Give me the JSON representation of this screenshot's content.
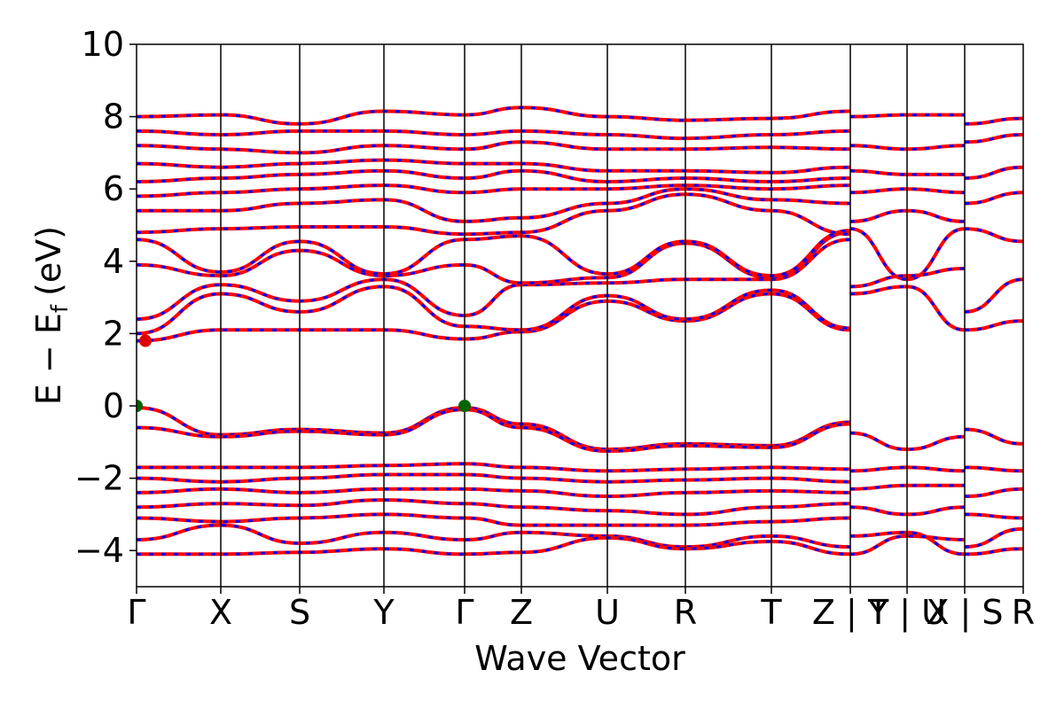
{
  "chart_data": {
    "type": "line",
    "title": "",
    "xlabel": "Wave Vector",
    "ylabel": "E − E",
    "ylabel_sub": "f",
    "ylabel_unit": "(eV)",
    "ylim": [
      -5,
      10
    ],
    "yticks": [
      -4,
      -2,
      0,
      2,
      4,
      6,
      8,
      10
    ],
    "ytick_labels": [
      "−4",
      "−2",
      "0",
      "2",
      "4",
      "6",
      "8",
      "10"
    ],
    "kpoints": [
      {
        "label": "Γ",
        "x": 0.0
      },
      {
        "label": "X",
        "x": 0.095
      },
      {
        "label": "S",
        "x": 0.184
      },
      {
        "label": "Y",
        "x": 0.279
      },
      {
        "label": "Γ",
        "x": 0.37
      },
      {
        "label": "Z",
        "x": 0.434
      },
      {
        "label": "U",
        "x": 0.531
      },
      {
        "label": "R",
        "x": 0.619
      },
      {
        "label": "T",
        "x": 0.716
      },
      {
        "label": "Z | Y",
        "x": 0.805
      },
      {
        "label": "T | U",
        "x": 0.869
      },
      {
        "label": "X | S",
        "x": 0.934
      },
      {
        "label": "R",
        "x": 1.0
      }
    ],
    "xlim": [
      0,
      1
    ],
    "grid": false,
    "colors": {
      "red": "#ff0000",
      "blue": "#0000ff",
      "marker": "#006400",
      "marker_red": "#dd0000"
    },
    "markers": [
      {
        "name": "vbm-marker-1",
        "x": 0.0,
        "y": 0.0,
        "color": "green"
      },
      {
        "name": "vbm-marker-2",
        "x": 0.37,
        "y": 0.0,
        "color": "green"
      },
      {
        "name": "cbm-marker",
        "x": 0.01,
        "y": 1.8,
        "color": "red"
      }
    ],
    "series": [
      {
        "nodes": [
          0.0,
          0.095,
          0.184,
          0.279,
          0.37,
          0.434,
          0.531,
          0.619,
          0.716,
          0.805
        ],
        "values": [
          -0.05,
          -0.8,
          -0.65,
          -0.75,
          -0.05,
          -0.5,
          -1.2,
          -1.05,
          -1.1,
          -0.45
        ]
      },
      {
        "nodes": [
          0.0,
          0.095,
          0.184,
          0.279,
          0.37,
          0.434,
          0.531,
          0.619,
          0.716,
          0.805
        ],
        "values": [
          -0.6,
          -0.85,
          -0.7,
          -0.8,
          -0.1,
          -0.6,
          -1.25,
          -1.1,
          -1.15,
          -0.5
        ]
      },
      {
        "nodes": [
          0.805,
          0.869,
          0.934
        ],
        "values": [
          -0.75,
          -1.2,
          -0.85
        ]
      },
      {
        "nodes": [
          0.934,
          1.0
        ],
        "values": [
          -0.65,
          -1.05
        ]
      },
      {
        "nodes": [
          0.0,
          0.095,
          0.184,
          0.279,
          0.37,
          0.434,
          0.531,
          0.619,
          0.716,
          0.805
        ],
        "values": [
          1.8,
          2.1,
          2.1,
          2.1,
          1.85,
          2.05,
          2.9,
          2.35,
          3.1,
          2.1
        ]
      },
      {
        "nodes": [
          0.0,
          0.095,
          0.184,
          0.279,
          0.37,
          0.434,
          0.531,
          0.619,
          0.716,
          0.805
        ],
        "values": [
          2.0,
          3.1,
          2.6,
          3.3,
          2.2,
          2.1,
          3.05,
          2.4,
          3.2,
          2.15
        ]
      },
      {
        "nodes": [
          0.0,
          0.095,
          0.184,
          0.279,
          0.37,
          0.434,
          0.531,
          0.619,
          0.716,
          0.805
        ],
        "values": [
          2.4,
          3.35,
          2.9,
          3.5,
          2.5,
          3.35,
          3.4,
          3.5,
          3.5,
          4.6
        ]
      },
      {
        "nodes": [
          0.0,
          0.095,
          0.184,
          0.279,
          0.37,
          0.434,
          0.531,
          0.619,
          0.716,
          0.805
        ],
        "values": [
          3.9,
          3.6,
          4.3,
          3.6,
          3.9,
          3.4,
          3.55,
          4.5,
          3.55,
          4.8
        ]
      },
      {
        "nodes": [
          0.0,
          0.095,
          0.184,
          0.279,
          0.37,
          0.434,
          0.531,
          0.619,
          0.716,
          0.805
        ],
        "values": [
          4.6,
          3.7,
          4.55,
          3.65,
          4.6,
          4.7,
          3.65,
          4.55,
          3.6,
          4.85
        ]
      },
      {
        "nodes": [
          0.805,
          0.869,
          0.934
        ],
        "values": [
          4.9,
          3.5,
          4.9
        ]
      },
      {
        "nodes": [
          0.805,
          0.869,
          0.934
        ],
        "values": [
          3.3,
          3.6,
          3.8
        ]
      },
      {
        "nodes": [
          0.805,
          0.869,
          0.934
        ],
        "values": [
          3.1,
          3.3,
          2.1
        ]
      },
      {
        "nodes": [
          0.934,
          1.0
        ],
        "values": [
          2.1,
          2.35
        ]
      },
      {
        "nodes": [
          0.934,
          1.0
        ],
        "values": [
          2.6,
          3.5
        ]
      },
      {
        "nodes": [
          0.934,
          1.0
        ],
        "values": [
          4.9,
          4.55
        ]
      },
      {
        "nodes": [
          0.0,
          0.095,
          0.184,
          0.279,
          0.37,
          0.434,
          0.531,
          0.619,
          0.716,
          0.805
        ],
        "values": [
          4.8,
          4.9,
          4.95,
          4.95,
          4.75,
          4.8,
          5.4,
          5.85,
          5.4,
          4.75
        ]
      },
      {
        "nodes": [
          0.0,
          0.095,
          0.184,
          0.279,
          0.37,
          0.434,
          0.531,
          0.619,
          0.716,
          0.805
        ],
        "values": [
          5.4,
          5.4,
          5.6,
          5.7,
          5.1,
          5.2,
          5.6,
          6.0,
          5.7,
          5.6
        ]
      },
      {
        "nodes": [
          0.0,
          0.095,
          0.184,
          0.279,
          0.37,
          0.434,
          0.531,
          0.619,
          0.716,
          0.805
        ],
        "values": [
          5.8,
          5.9,
          6.0,
          6.1,
          5.9,
          6.0,
          6.0,
          6.1,
          6.0,
          6.1
        ]
      },
      {
        "nodes": [
          0.0,
          0.095,
          0.184,
          0.279,
          0.37,
          0.434,
          0.531,
          0.619,
          0.716,
          0.805
        ],
        "values": [
          6.2,
          6.3,
          6.4,
          6.5,
          6.3,
          6.5,
          6.2,
          6.3,
          6.2,
          6.3
        ]
      },
      {
        "nodes": [
          0.0,
          0.095,
          0.184,
          0.279,
          0.37,
          0.434,
          0.531,
          0.619,
          0.716,
          0.805
        ],
        "values": [
          6.7,
          6.6,
          6.7,
          6.8,
          6.7,
          6.7,
          6.5,
          6.5,
          6.45,
          6.6
        ]
      },
      {
        "nodes": [
          0.0,
          0.095,
          0.184,
          0.279,
          0.37,
          0.434,
          0.531,
          0.619,
          0.716,
          0.805
        ],
        "values": [
          7.2,
          7.1,
          7.0,
          7.2,
          7.1,
          7.3,
          7.1,
          7.1,
          7.15,
          7.1
        ]
      },
      {
        "nodes": [
          0.0,
          0.095,
          0.184,
          0.279,
          0.37,
          0.434,
          0.531,
          0.619,
          0.716,
          0.805
        ],
        "values": [
          7.6,
          7.5,
          7.6,
          7.6,
          7.5,
          7.6,
          7.5,
          7.4,
          7.5,
          7.6
        ]
      },
      {
        "nodes": [
          0.0,
          0.095,
          0.184,
          0.279,
          0.37,
          0.434,
          0.531,
          0.619,
          0.716,
          0.805
        ],
        "values": [
          8.0,
          8.05,
          7.8,
          8.15,
          8.05,
          8.25,
          8.0,
          7.9,
          7.95,
          8.15
        ]
      },
      {
        "nodes": [
          0.805,
          0.869,
          0.934
        ],
        "values": [
          5.1,
          5.4,
          5.1
        ]
      },
      {
        "nodes": [
          0.805,
          0.869,
          0.934
        ],
        "values": [
          5.9,
          6.0,
          5.9
        ]
      },
      {
        "nodes": [
          0.805,
          0.869,
          0.934
        ],
        "values": [
          6.5,
          6.4,
          6.4
        ]
      },
      {
        "nodes": [
          0.805,
          0.869,
          0.934
        ],
        "values": [
          7.2,
          7.1,
          7.2
        ]
      },
      {
        "nodes": [
          0.805,
          0.869,
          0.934
        ],
        "values": [
          8.0,
          8.05,
          8.05
        ]
      },
      {
        "nodes": [
          0.934,
          1.0
        ],
        "values": [
          5.6,
          5.9
        ]
      },
      {
        "nodes": [
          0.934,
          1.0
        ],
        "values": [
          6.3,
          6.6
        ]
      },
      {
        "nodes": [
          0.934,
          1.0
        ],
        "values": [
          7.3,
          7.5
        ]
      },
      {
        "nodes": [
          0.934,
          1.0
        ],
        "values": [
          7.8,
          7.95
        ]
      },
      {
        "nodes": [
          0.0,
          0.095,
          0.184,
          0.279,
          0.37,
          0.434,
          0.531,
          0.619,
          0.716,
          0.805
        ],
        "values": [
          -1.7,
          -1.7,
          -1.7,
          -1.65,
          -1.6,
          -1.7,
          -1.8,
          -1.75,
          -1.7,
          -1.75
        ]
      },
      {
        "nodes": [
          0.0,
          0.095,
          0.184,
          0.279,
          0.37,
          0.434,
          0.531,
          0.619,
          0.716,
          0.805
        ],
        "values": [
          -2.0,
          -2.1,
          -2.0,
          -1.9,
          -1.9,
          -2.0,
          -2.1,
          -2.05,
          -2.0,
          -2.1
        ]
      },
      {
        "nodes": [
          0.0,
          0.095,
          0.184,
          0.279,
          0.37,
          0.434,
          0.531,
          0.619,
          0.716,
          0.805
        ],
        "values": [
          -2.4,
          -2.3,
          -2.4,
          -2.3,
          -2.3,
          -2.35,
          -2.5,
          -2.4,
          -2.35,
          -2.4
        ]
      },
      {
        "nodes": [
          0.0,
          0.095,
          0.184,
          0.279,
          0.37,
          0.434,
          0.531,
          0.619,
          0.716,
          0.805
        ],
        "values": [
          -2.8,
          -2.7,
          -2.75,
          -2.6,
          -2.7,
          -2.8,
          -2.9,
          -3.0,
          -2.8,
          -2.7
        ]
      },
      {
        "nodes": [
          0.0,
          0.095,
          0.184,
          0.279,
          0.37,
          0.434,
          0.531,
          0.619,
          0.716,
          0.805
        ],
        "values": [
          -3.1,
          -3.2,
          -3.1,
          -3.0,
          -3.1,
          -3.3,
          -3.3,
          -3.3,
          -3.2,
          -3.1
        ]
      },
      {
        "nodes": [
          0.0,
          0.095,
          0.184,
          0.279,
          0.37,
          0.434,
          0.531,
          0.619,
          0.716,
          0.805
        ],
        "values": [
          -3.7,
          -3.3,
          -3.8,
          -3.5,
          -3.7,
          -3.5,
          -3.6,
          -3.9,
          -3.6,
          -3.9
        ]
      },
      {
        "nodes": [
          0.0,
          0.095,
          0.184,
          0.279,
          0.37,
          0.434,
          0.531,
          0.619,
          0.716,
          0.805
        ],
        "values": [
          -4.1,
          -4.1,
          -4.05,
          -3.95,
          -4.1,
          -4.05,
          -3.65,
          -3.95,
          -3.75,
          -4.1
        ]
      },
      {
        "nodes": [
          0.805,
          0.869,
          0.934
        ],
        "values": [
          -1.8,
          -1.7,
          -1.8
        ]
      },
      {
        "nodes": [
          0.805,
          0.869,
          0.934
        ],
        "values": [
          -2.3,
          -2.2,
          -2.2
        ]
      },
      {
        "nodes": [
          0.805,
          0.869,
          0.934
        ],
        "values": [
          -2.8,
          -3.0,
          -2.8
        ]
      },
      {
        "nodes": [
          0.805,
          0.869,
          0.934
        ],
        "values": [
          -3.6,
          -3.5,
          -4.1
        ]
      },
      {
        "nodes": [
          0.805,
          0.869,
          0.934
        ],
        "values": [
          -4.1,
          -3.6,
          -3.7
        ]
      },
      {
        "nodes": [
          0.934,
          1.0
        ],
        "values": [
          -1.7,
          -1.8
        ]
      },
      {
        "nodes": [
          0.934,
          1.0
        ],
        "values": [
          -2.5,
          -2.3
        ]
      },
      {
        "nodes": [
          0.934,
          1.0
        ],
        "values": [
          -3.0,
          -3.1
        ]
      },
      {
        "nodes": [
          0.934,
          1.0
        ],
        "values": [
          -3.9,
          -3.4
        ]
      },
      {
        "nodes": [
          0.934,
          1.0
        ],
        "values": [
          -4.1,
          -3.95
        ]
      }
    ]
  }
}
